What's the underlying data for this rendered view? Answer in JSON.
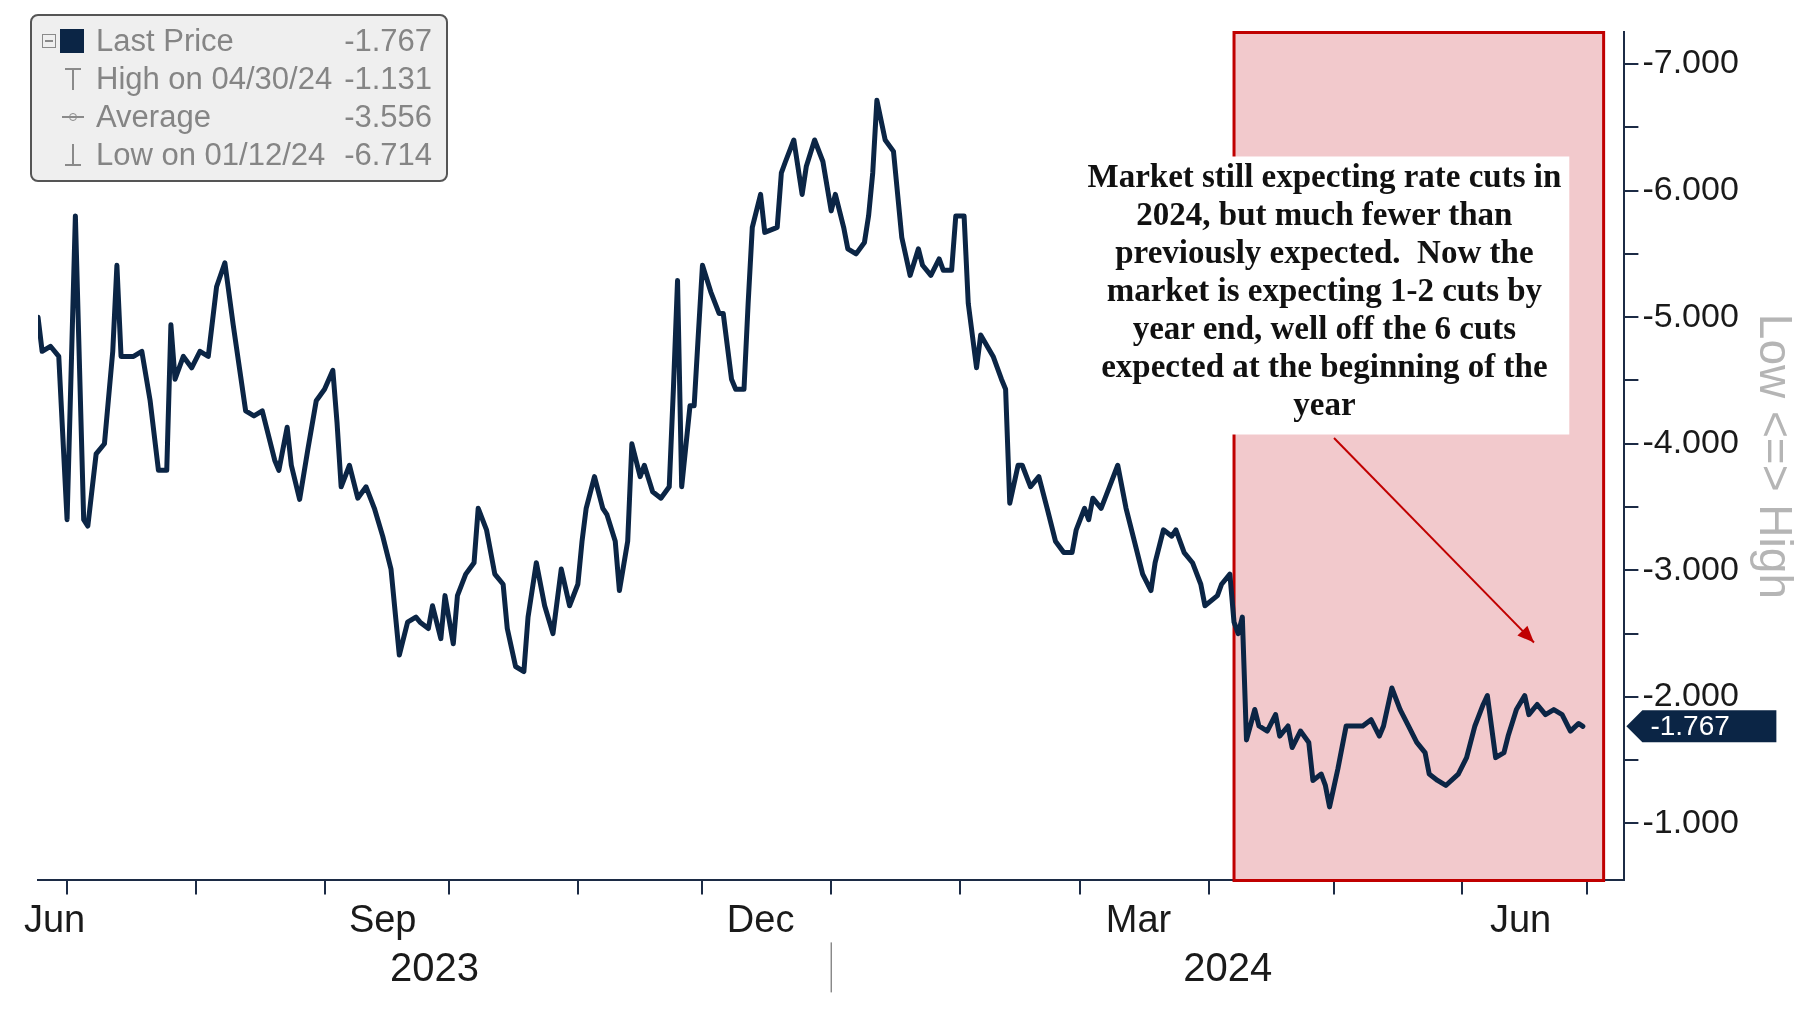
{
  "chart_data": {
    "type": "line",
    "ylabel": "Low <=> High",
    "x": [
      "2023-06-24",
      "2023-06-25",
      "2023-06-27",
      "2023-06-29",
      "2023-07-01",
      "2023-07-03",
      "2023-07-05",
      "2023-07-06",
      "2023-07-08",
      "2023-07-10",
      "2023-07-12",
      "2023-07-13",
      "2023-07-14",
      "2023-07-17",
      "2023-07-19",
      "2023-07-21",
      "2023-07-23",
      "2023-07-25",
      "2023-07-26",
      "2023-07-27",
      "2023-07-29",
      "2023-07-31",
      "2023-08-02",
      "2023-08-04",
      "2023-08-06",
      "2023-08-08",
      "2023-08-10",
      "2023-08-13",
      "2023-08-15",
      "2023-08-17",
      "2023-08-20",
      "2023-08-21",
      "2023-08-23",
      "2023-08-24",
      "2023-08-26",
      "2023-08-28",
      "2023-08-30",
      "2023-09-01",
      "2023-09-03",
      "2023-09-04",
      "2023-09-05",
      "2023-09-07",
      "2023-09-09",
      "2023-09-11",
      "2023-09-13",
      "2023-09-15",
      "2023-09-17",
      "2023-09-19",
      "2023-09-21",
      "2023-09-23",
      "2023-09-24",
      "2023-09-26",
      "2023-09-27",
      "2023-09-29",
      "2023-09-30",
      "2023-10-02",
      "2023-10-03",
      "2023-10-05",
      "2023-10-07",
      "2023-10-08",
      "2023-10-10",
      "2023-10-12",
      "2023-10-14",
      "2023-10-15",
      "2023-10-17",
      "2023-10-19",
      "2023-10-20",
      "2023-10-22",
      "2023-10-24",
      "2023-10-26",
      "2023-10-28",
      "2023-10-30",
      "2023-11-01",
      "2023-11-02",
      "2023-11-03",
      "2023-11-05",
      "2023-11-07",
      "2023-11-08",
      "2023-11-10",
      "2023-11-11",
      "2023-11-13",
      "2023-11-14",
      "2023-11-16",
      "2023-11-17",
      "2023-11-19",
      "2023-11-21",
      "2023-11-23",
      "2023-11-24",
      "2023-11-25",
      "2023-11-26",
      "2023-11-28",
      "2023-11-29",
      "2023-11-30",
      "2023-12-01",
      "2023-12-03",
      "2023-12-05",
      "2023-12-06",
      "2023-12-08",
      "2023-12-09",
      "2023-12-11",
      "2023-12-12",
      "2023-12-13",
      "2023-12-15",
      "2023-12-16",
      "2023-12-19",
      "2023-12-20",
      "2023-12-21",
      "2023-12-23",
      "2023-12-25",
      "2023-12-26",
      "2023-12-28",
      "2023-12-30",
      "2024-01-01",
      "2024-01-02",
      "2024-01-04",
      "2024-01-05",
      "2024-01-07",
      "2024-01-09",
      "2024-01-10",
      "2024-01-11",
      "2024-01-12",
      "2024-01-14",
      "2024-01-16",
      "2024-01-18",
      "2024-01-20",
      "2024-01-22",
      "2024-01-23",
      "2024-01-25",
      "2024-01-27",
      "2024-01-28",
      "2024-01-30",
      "2024-01-31",
      "2024-02-02",
      "2024-02-03",
      "2024-02-05",
      "2024-02-06",
      "2024-02-09",
      "2024-02-11",
      "2024-02-12",
      "2024-02-13",
      "2024-02-15",
      "2024-02-16",
      "2024-02-18",
      "2024-02-20",
      "2024-02-22",
      "2024-02-24",
      "2024-02-26",
      "2024-02-28",
      "2024-02-29",
      "2024-03-02",
      "2024-03-03",
      "2024-03-04",
      "2024-03-06",
      "2024-03-08",
      "2024-03-10",
      "2024-03-12",
      "2024-03-14",
      "2024-03-16",
      "2024-03-18",
      "2024-03-19",
      "2024-03-21",
      "2024-03-23",
      "2024-03-24",
      "2024-03-26",
      "2024-03-28",
      "2024-03-30",
      "2024-03-31",
      "2024-04-03",
      "2024-04-04",
      "2024-04-06",
      "2024-04-07",
      "2024-04-08",
      "2024-04-09",
      "2024-04-10",
      "2024-04-12",
      "2024-04-13",
      "2024-04-15",
      "2024-04-17",
      "2024-04-18",
      "2024-04-20",
      "2024-04-21",
      "2024-04-23",
      "2024-04-25",
      "2024-04-26",
      "2024-04-28",
      "2024-04-29",
      "2024-04-30",
      "2024-05-02",
      "2024-05-04",
      "2024-05-06",
      "2024-05-08",
      "2024-05-10",
      "2024-05-12",
      "2024-05-13",
      "2024-05-15",
      "2024-05-17",
      "2024-05-19",
      "2024-05-21",
      "2024-05-23",
      "2024-05-24",
      "2024-05-26",
      "2024-05-28",
      "2024-05-31",
      "2024-06-02",
      "2024-06-04",
      "2024-06-06",
      "2024-06-07",
      "2024-06-09",
      "2024-06-11",
      "2024-06-12",
      "2024-06-14",
      "2024-06-16",
      "2024-06-17",
      "2024-06-19",
      "2024-06-21",
      "2024-06-23",
      "2024-06-25",
      "2024-06-27",
      "2024-06-29",
      "2024-06-30"
    ],
    "series": [
      {
        "name": "Last Price",
        "color": "#0b2545",
        "values": [
          -5.0,
          -4.73,
          -4.77,
          -4.69,
          -3.4,
          -5.8,
          -3.4,
          -3.35,
          -3.92,
          -4.0,
          -4.73,
          -5.41,
          -4.69,
          -4.69,
          -4.73,
          -4.34,
          -3.79,
          -3.79,
          -4.94,
          -4.51,
          -4.69,
          -4.6,
          -4.73,
          -4.69,
          -5.24,
          -5.43,
          -4.94,
          -4.26,
          -4.22,
          -4.26,
          -3.87,
          -3.79,
          -4.13,
          -3.83,
          -3.56,
          -3.96,
          -4.34,
          -4.43,
          -4.58,
          -4.17,
          -3.66,
          -3.83,
          -3.57,
          -3.66,
          -3.49,
          -3.27,
          -3.01,
          -2.33,
          -2.59,
          -2.63,
          -2.59,
          -2.54,
          -2.72,
          -2.46,
          -2.8,
          -2.42,
          -2.8,
          -2.97,
          -3.06,
          -3.49,
          -3.32,
          -2.97,
          -2.89,
          -2.54,
          -2.24,
          -2.2,
          -2.63,
          -3.06,
          -2.72,
          -2.5,
          -3.01,
          -2.72,
          -2.89,
          -3.23,
          -3.49,
          -3.74,
          -3.49,
          -3.44,
          -3.23,
          -2.84,
          -3.23,
          -4.0,
          -3.74,
          -3.83,
          -3.62,
          -3.57,
          -3.66,
          -4.43,
          -5.29,
          -3.66,
          -4.3,
          -4.3,
          -4.86,
          -5.41,
          -5.2,
          -5.03,
          -5.03,
          -4.51,
          -4.43,
          -4.43,
          -5.11,
          -5.71,
          -5.97,
          -5.67,
          -5.71,
          -6.14,
          -6.23,
          -6.4,
          -5.97,
          -6.19,
          -6.4,
          -6.23,
          -5.84,
          -5.97,
          -5.71,
          -5.54,
          -5.5,
          -5.59,
          -5.8,
          -6.14,
          -6.714,
          -6.4,
          -6.31,
          -5.63,
          -5.33,
          -5.54,
          -5.41,
          -5.33,
          -5.46,
          -5.37,
          -5.37,
          -5.8,
          -5.8,
          -5.11,
          -4.6,
          -4.86,
          -4.69,
          -4.51,
          -4.43,
          -3.53,
          -3.83,
          -3.83,
          -3.66,
          -3.74,
          -3.49,
          -3.23,
          -3.14,
          -3.14,
          -3.32,
          -3.49,
          -3.4,
          -3.57,
          -3.49,
          -3.66,
          -3.83,
          -3.49,
          -3.23,
          -2.97,
          -2.84,
          -3.06,
          -3.32,
          -3.27,
          -3.32,
          -3.14,
          -3.06,
          -2.89,
          -2.72,
          -2.8,
          -2.89,
          -2.97,
          -2.59,
          -2.5,
          -2.63,
          -1.66,
          -1.9,
          -1.77,
          -1.73,
          -1.86,
          -1.69,
          -1.77,
          -1.6,
          -1.73,
          -1.64,
          -1.34,
          -1.39,
          -1.3,
          -1.131,
          -1.43,
          -1.77,
          -1.77,
          -1.77,
          -1.82,
          -1.69,
          -1.77,
          -2.07,
          -1.9,
          -1.77,
          -1.64,
          -1.56,
          -1.39,
          -1.34,
          -1.3,
          -1.39,
          -1.52,
          -1.77,
          -1.94,
          -2.01,
          -1.52,
          -1.56,
          -1.69,
          -1.9,
          -2.01,
          -1.86,
          -1.94,
          -1.86,
          -1.9,
          -1.86,
          -1.73,
          -1.79,
          -1.767
        ]
      }
    ],
    "xlim": [
      "2023-06-24",
      "2024-07-10"
    ],
    "xticks": [
      {
        "value": "2023-06-28",
        "label": "Jun"
      },
      {
        "value": "2023-07-01",
        "label": null
      },
      {
        "value": "2023-08-01",
        "label": null
      },
      {
        "value": "2023-09-01",
        "label": null
      },
      {
        "value": "2023-09-15",
        "label": "Sep"
      },
      {
        "value": "2023-10-01",
        "label": null
      },
      {
        "value": "2023-11-01",
        "label": null
      },
      {
        "value": "2023-12-01",
        "label": null
      },
      {
        "value": "2023-12-15",
        "label": "Dec"
      },
      {
        "value": "2024-01-01",
        "label": null
      },
      {
        "value": "2024-02-01",
        "label": null
      },
      {
        "value": "2024-03-01",
        "label": null
      },
      {
        "value": "2024-03-15",
        "label": "Mar"
      },
      {
        "value": "2024-04-01",
        "label": null
      },
      {
        "value": "2024-05-01",
        "label": null
      },
      {
        "value": "2024-06-01",
        "label": null
      },
      {
        "value": "2024-06-15",
        "label": "Jun"
      },
      {
        "value": "2024-07-01",
        "label": null
      }
    ],
    "ylim": [
      -0.55,
      -7.25
    ],
    "yticks": [
      {
        "value": -7,
        "label": "-7.000"
      },
      {
        "value": -6.5,
        "label": null
      },
      {
        "value": -6,
        "label": "-6.000"
      },
      {
        "value": -5.5,
        "label": null
      },
      {
        "value": -5,
        "label": "-5.000"
      },
      {
        "value": -4.5,
        "label": null
      },
      {
        "value": -4,
        "label": "-4.000"
      },
      {
        "value": -3.5,
        "label": null
      },
      {
        "value": -3,
        "label": "-3.000"
      },
      {
        "value": -2.5,
        "label": null
      },
      {
        "value": -2,
        "label": "-2.000"
      },
      {
        "value": -1.5,
        "label": null
      },
      {
        "value": -1,
        "label": "-1.000"
      }
    ],
    "bands": [
      {
        "axis": "x",
        "from": "2024-04-07",
        "to": "2024-07-05",
        "color": "#f2c9cc"
      }
    ],
    "legend": "top left",
    "annotations": [
      "-1.767",
      "High on 04/30/24",
      "-1.131",
      "Average",
      "-3.556",
      "Low on 01/12/24",
      "-6.714",
      "Market still expecting rate cuts in 2024, but much fewer than previously expected.  Now the market is expecting 1-2 cuts by year end, well off the 6 cuts expected at the beginning of the year",
      "2023",
      "2024",
      {
        "text": "-1.767",
        "x": "2024-06-30",
        "y": -1.767
      }
    ]
  }
}
